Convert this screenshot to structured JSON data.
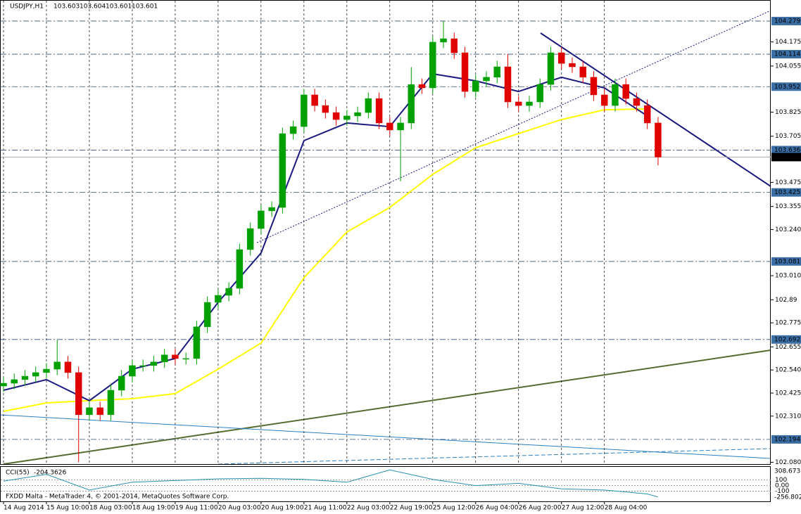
{
  "chart_data": [
    {
      "type": "candlestick",
      "symbol": "USDJPY,H1",
      "header_values": [
        103.603,
        103.604,
        103.601,
        103.601
      ],
      "annotation": "FXDD Malta - MetaTrader 4, © 2001-2014, MetaQuotes Software Corp.",
      "x": [
        0,
        4,
        8,
        12,
        16,
        20,
        24,
        28,
        32,
        36,
        40,
        44,
        48,
        52,
        56,
        60,
        64,
        68,
        72,
        76,
        80,
        84,
        88,
        92,
        96,
        100,
        104,
        108,
        112,
        116,
        120,
        124,
        128,
        132,
        136,
        140,
        144,
        148,
        152,
        156,
        160,
        164,
        168,
        172,
        176,
        180,
        184,
        188,
        192,
        196,
        200,
        204,
        208,
        212,
        216,
        220,
        224,
        228,
        232,
        236,
        240,
        244
      ],
      "open": [
        102.46,
        102.474,
        102.492,
        102.509,
        102.527,
        102.544,
        102.58,
        102.527,
        102.317,
        102.352,
        102.317,
        102.439,
        102.509,
        102.562,
        102.562,
        102.58,
        102.615,
        102.597,
        102.597,
        102.755,
        102.877,
        102.912,
        102.947,
        103.14,
        103.245,
        103.333,
        103.35,
        103.718,
        103.753,
        103.911,
        103.858,
        103.823,
        103.788,
        103.806,
        103.823,
        103.893,
        103.771,
        103.736,
        103.771,
        103.963,
        103.946,
        104.174,
        104.191,
        104.121,
        103.928,
        103.981,
        103.999,
        104.051,
        103.876,
        103.858,
        103.876,
        103.963,
        104.121,
        104.068,
        104.051,
        103.999,
        103.911,
        103.858,
        103.963,
        103.893,
        103.858,
        103.771
      ],
      "high": [
        102.504,
        102.522,
        102.539,
        102.557,
        102.574,
        102.69,
        102.61,
        102.557,
        102.382,
        102.382,
        102.469,
        102.539,
        102.592,
        102.592,
        102.61,
        102.645,
        102.645,
        102.627,
        102.785,
        102.907,
        102.942,
        102.977,
        103.17,
        103.275,
        103.363,
        103.38,
        103.748,
        103.783,
        103.941,
        103.941,
        103.888,
        103.853,
        103.836,
        103.853,
        103.923,
        103.923,
        103.801,
        103.801,
        104.05,
        103.993,
        104.204,
        104.279,
        104.221,
        104.151,
        104.011,
        104.029,
        104.081,
        104.114,
        103.906,
        103.906,
        103.993,
        104.151,
        104.151,
        104.098,
        104.081,
        104.029,
        103.941,
        103.993,
        103.993,
        103.923,
        103.888,
        103.801
      ],
      "low": [
        102.43,
        102.444,
        102.462,
        102.479,
        102.497,
        102.514,
        102.497,
        102.08,
        102.287,
        102.287,
        102.287,
        102.409,
        102.479,
        102.532,
        102.532,
        102.55,
        102.567,
        102.567,
        102.567,
        102.725,
        102.847,
        102.882,
        102.917,
        103.11,
        103.215,
        103.303,
        103.32,
        103.688,
        103.723,
        103.828,
        103.793,
        103.758,
        103.758,
        103.776,
        103.793,
        103.741,
        103.706,
        103.48,
        103.741,
        103.916,
        103.916,
        104.144,
        104.091,
        103.898,
        103.898,
        103.951,
        103.969,
        103.846,
        103.828,
        103.828,
        103.846,
        103.933,
        104.038,
        104.021,
        103.969,
        103.881,
        103.828,
        103.828,
        103.863,
        103.828,
        103.741,
        103.56
      ],
      "close": [
        102.474,
        102.492,
        102.509,
        102.527,
        102.544,
        102.58,
        102.527,
        102.317,
        102.352,
        102.317,
        102.439,
        102.509,
        102.562,
        102.562,
        102.58,
        102.615,
        102.597,
        102.597,
        102.755,
        102.877,
        102.912,
        102.947,
        103.14,
        103.245,
        103.333,
        103.35,
        103.718,
        103.753,
        103.911,
        103.858,
        103.823,
        103.788,
        103.806,
        103.823,
        103.893,
        103.771,
        103.736,
        103.771,
        103.963,
        103.946,
        104.174,
        104.191,
        104.121,
        103.928,
        103.981,
        103.999,
        104.051,
        103.876,
        103.858,
        103.876,
        103.963,
        104.121,
        104.068,
        104.051,
        103.999,
        103.911,
        103.858,
        103.963,
        103.893,
        103.858,
        103.771,
        103.601
      ],
      "up_color": "#00a000",
      "down_color": "#e00000",
      "overlay_x": [
        0,
        16,
        32,
        48,
        64,
        80,
        96,
        112,
        128,
        144,
        160,
        176,
        192,
        208,
        224,
        240
      ],
      "overlays": [
        {
          "color": "#ffff00",
          "values": [
            102.334,
            102.376,
            102.387,
            102.397,
            102.422,
            102.544,
            102.674,
            103.0,
            103.228,
            103.35,
            103.515,
            103.648,
            103.718,
            103.788,
            103.837,
            103.841
          ]
        },
        {
          "color": "#1a1a80",
          "values": [
            102.439,
            102.492,
            102.387,
            102.544,
            102.597,
            102.877,
            103.123,
            103.683,
            103.771,
            103.753,
            104.016,
            103.981,
            103.928,
            103.999,
            103.946,
            103.806
          ]
        }
      ],
      "levels": [
        104.279,
        104.114,
        103.952,
        103.636,
        103.425,
        103.081,
        102.692,
        102.194
      ],
      "current_price": 103.601,
      "xlim": [
        0,
        286
      ],
      "ylim": [
        102.071,
        104.384
      ],
      "yticks": [
        104.175,
        104.055,
        103.825,
        103.705,
        103.475,
        103.355,
        {
          "value": 103.24,
          "label": "103.240"
        },
        {
          "value": 103.01,
          "label": "103.010"
        },
        102.89,
        102.775,
        102.655,
        {
          "value": 102.54,
          "label": "102.540"
        },
        102.425,
        {
          "value": 102.31,
          "label": "102.310"
        },
        {
          "value": 102.08,
          "label": "102.080"
        }
      ],
      "xticks": [
        {
          "value": 0,
          "label": "14 Aug 2014"
        },
        {
          "value": 16,
          "label": "15 Aug 10:00"
        },
        {
          "value": 32,
          "label": "18 Aug 03:00"
        },
        {
          "value": 48,
          "label": "18 Aug 19:00"
        },
        {
          "value": 64,
          "label": "19 Aug 11:00"
        },
        {
          "value": 80,
          "label": "20 Aug 03:00"
        },
        {
          "value": 96,
          "label": "20 Aug 19:00"
        },
        {
          "value": 112,
          "label": "21 Aug 11:00"
        },
        {
          "value": 128,
          "label": "22 Aug 03:00"
        },
        {
          "value": 144,
          "label": "22 Aug 19:00"
        },
        {
          "value": 160,
          "label": "25 Aug 12:00"
        },
        {
          "value": 176,
          "label": "26 Aug 04:00"
        },
        {
          "value": 192,
          "label": "26 Aug 20:00"
        },
        {
          "value": 208,
          "label": "27 Aug 12:00"
        },
        {
          "value": 224,
          "label": "28 Aug 04:00"
        }
      ],
      "grid": true
    },
    {
      "type": "line",
      "title": "CCI(55)",
      "current_value": -204.3626,
      "color": "#2a8fb0",
      "x": [
        0,
        16,
        32,
        48,
        64,
        80,
        96,
        112,
        128,
        144,
        160,
        176,
        192,
        208,
        224,
        240,
        244
      ],
      "values": [
        80,
        200,
        -80,
        60,
        90,
        120,
        130,
        110,
        60,
        280,
        110,
        0,
        40,
        -60,
        -80,
        -150,
        -204.3626
      ],
      "xlim": [
        0,
        286
      ],
      "ylim": [
        -256.8024,
        308.6731
      ],
      "yticks": [
        100,
        {
          "value": 0,
          "label": "0.00"
        },
        -100
      ]
    }
  ]
}
